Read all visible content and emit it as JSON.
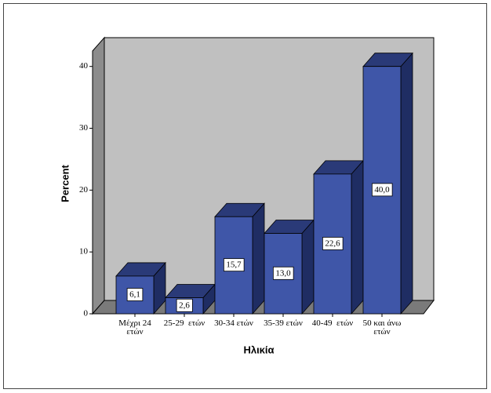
{
  "chart_data": {
    "type": "bar3d",
    "categories": [
      "Μέχρι 24 ετών",
      "25-29  ετών",
      "30-34 ετών",
      "35-39 ετών",
      "40-49  ετών",
      "50 και άνω ετών"
    ],
    "values": [
      6.1,
      2.6,
      15.7,
      13.0,
      22.6,
      40.0
    ],
    "value_labels": [
      "6,1",
      "2,6",
      "15,7",
      "13,0",
      "22,6",
      "40,0"
    ],
    "color": "#3f56a8",
    "ylabel": "Percent",
    "xlabel": "Ηλικία",
    "ylim": [
      0,
      42.5
    ],
    "yticks": [
      0,
      10,
      20,
      30,
      40
    ]
  }
}
